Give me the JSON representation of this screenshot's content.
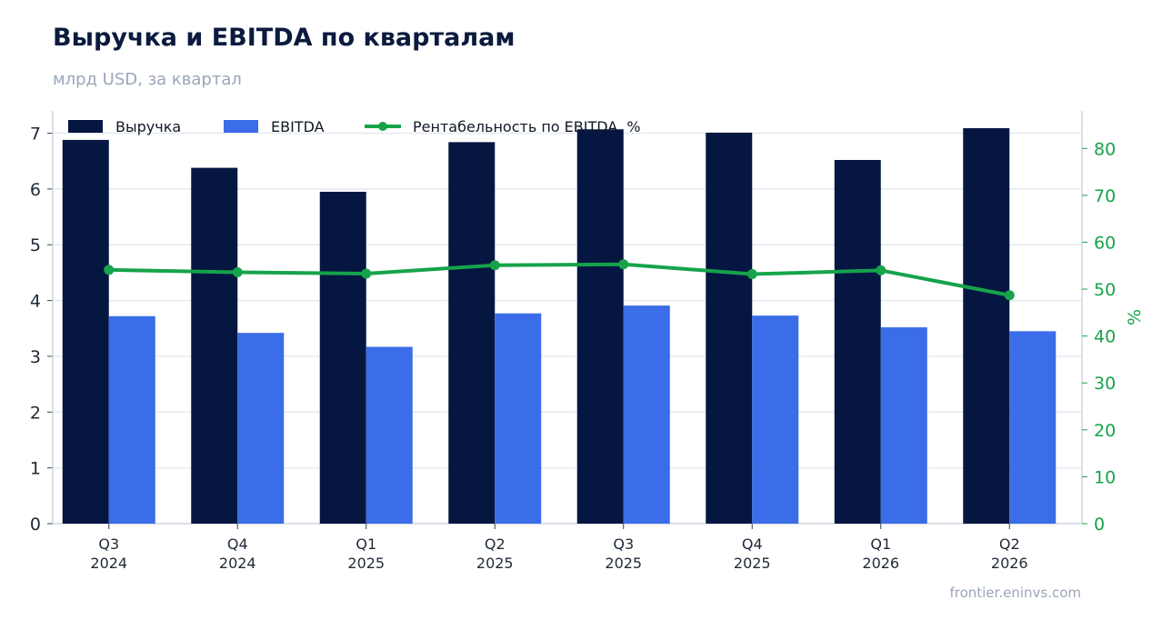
{
  "header": {
    "title": "Выручка и EBITDA по кварталам",
    "subtitle": "млрд USD, за квартал"
  },
  "footer": {
    "source": "frontier.eninvs.com"
  },
  "colors": {
    "revenue": "#051641",
    "ebitda": "#3b6de8",
    "margin": "#16a34a",
    "grid": "#e5eaf0",
    "axis": "#cfd6df"
  },
  "chart_data": {
    "type": "bar",
    "categories": [
      [
        "Q3",
        "2024"
      ],
      [
        "Q4",
        "2024"
      ],
      [
        "Q1",
        "2025"
      ],
      [
        "Q2",
        "2025"
      ],
      [
        "Q3",
        "2025"
      ],
      [
        "Q4",
        "2025"
      ],
      [
        "Q1",
        "2026"
      ],
      [
        "Q2",
        "2026"
      ]
    ],
    "series": [
      {
        "name": "Выручка",
        "type": "bar",
        "axis": "left",
        "values": [
          6.88,
          6.38,
          5.95,
          6.84,
          7.07,
          7.01,
          6.52,
          7.09
        ]
      },
      {
        "name": "EBITDA",
        "type": "bar",
        "axis": "left",
        "values": [
          3.72,
          3.42,
          3.17,
          3.77,
          3.91,
          3.73,
          3.52,
          3.45
        ]
      },
      {
        "name": "Рентабельность по EBITDA, %",
        "type": "line",
        "axis": "right",
        "values": [
          54.1,
          53.6,
          53.3,
          55.1,
          55.3,
          53.2,
          54.0,
          48.7
        ]
      }
    ],
    "y_left": {
      "label": "",
      "ylim": [
        0,
        7.4
      ],
      "ticks": [
        0,
        1,
        2,
        3,
        4,
        5,
        6,
        7
      ]
    },
    "y_right": {
      "label": "%",
      "ylim": [
        0,
        88
      ],
      "ticks": [
        0,
        10,
        20,
        30,
        40,
        50,
        60,
        70,
        80
      ]
    },
    "grid": true,
    "legend_position": "top-left"
  }
}
